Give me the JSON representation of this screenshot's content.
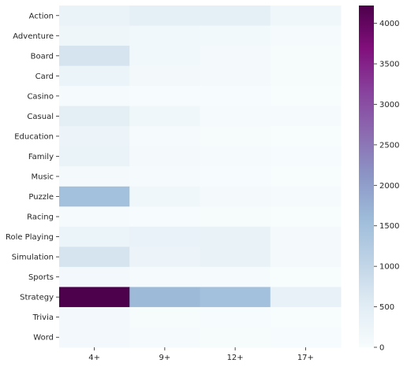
{
  "chart_data": {
    "type": "heatmap",
    "title": "",
    "xlabel": "",
    "ylabel": "",
    "x_categories": [
      "4+",
      "9+",
      "12+",
      "17+"
    ],
    "y_categories": [
      "Action",
      "Adventure",
      "Board",
      "Card",
      "Casino",
      "Casual",
      "Education",
      "Family",
      "Music",
      "Puzzle",
      "Racing",
      "Role Playing",
      "Simulation",
      "Sports",
      "Strategy",
      "Trivia",
      "Word"
    ],
    "values": [
      [
        300,
        420,
        420,
        180
      ],
      [
        200,
        130,
        110,
        40
      ],
      [
        700,
        130,
        70,
        30
      ],
      [
        280,
        90,
        80,
        30
      ],
      [
        40,
        20,
        20,
        10
      ],
      [
        450,
        160,
        50,
        40
      ],
      [
        250,
        50,
        30,
        10
      ],
      [
        300,
        60,
        40,
        20
      ],
      [
        70,
        40,
        20,
        10
      ],
      [
        1500,
        160,
        70,
        40
      ],
      [
        50,
        20,
        30,
        10
      ],
      [
        280,
        320,
        330,
        80
      ],
      [
        700,
        250,
        330,
        80
      ],
      [
        120,
        50,
        40,
        10
      ],
      [
        4220,
        1600,
        1500,
        350
      ],
      [
        120,
        30,
        20,
        10
      ],
      [
        120,
        40,
        30,
        20
      ]
    ],
    "colorbar": {
      "min": 0,
      "max": 4220,
      "ticks": [
        0,
        500,
        1000,
        1500,
        2000,
        2500,
        3000,
        3500,
        4000
      ],
      "colormap": "BuPu"
    }
  }
}
